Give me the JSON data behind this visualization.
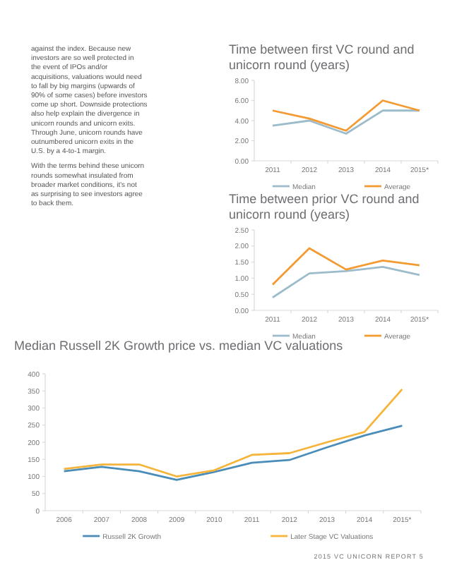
{
  "chart_data": [
    {
      "type": "other",
      "annotations": [
        "against the index. Because new investors are so well protected in the event of IPOs and/or acquisitions, valuations would need to fall by big margins (upwards of 90% of some cases) before investors come up short. Downside protections also help explain the divergence in unicorn rounds and unicorn exits. Through June, unicorn rounds have outnumbered unicorn exits in the U.S. by a 4-to-1 margin.",
        "With the terms behind these unicorn rounds somewhat insulated from broader market conditions, it's not as surprising to see investors agree to back them."
      ]
    },
    {
      "type": "line",
      "title": "Time between first VC round and unicorn round (years)",
      "categories": [
        "2011",
        "2012",
        "2013",
        "2014",
        "2015*"
      ],
      "series": [
        {
          "name": "Median",
          "color": "#9dbccb",
          "values": [
            3.5,
            4.0,
            2.7,
            5.0,
            5.0
          ]
        },
        {
          "name": "Average",
          "color": "#f39a32",
          "values": [
            5.0,
            4.2,
            3.0,
            6.0,
            5.0
          ]
        }
      ],
      "ylim": [
        0,
        8
      ],
      "yticks": [
        {
          "value": 0,
          "label": "0.00"
        },
        {
          "value": 2,
          "label": "2.00"
        },
        {
          "value": 4,
          "label": "4.00"
        },
        {
          "value": 6,
          "label": "6.00"
        },
        {
          "value": 8,
          "label": "8.00"
        }
      ],
      "grid": false,
      "legend": "bottom",
      "marker": "none"
    },
    {
      "type": "line",
      "title": "Time between prior VC round and unicorn round (years)",
      "categories": [
        "2011",
        "2012",
        "2013",
        "2014",
        "2015*"
      ],
      "series": [
        {
          "name": "Median",
          "color": "#9dbccb",
          "values": [
            0.4,
            1.15,
            1.22,
            1.35,
            1.1
          ]
        },
        {
          "name": "Average",
          "color": "#f39a32",
          "values": [
            0.8,
            1.93,
            1.27,
            1.55,
            1.4
          ]
        }
      ],
      "ylim": [
        0,
        2.5
      ],
      "yticks": [
        {
          "value": 0,
          "label": "0.00"
        },
        {
          "value": 0.5,
          "label": "0.50"
        },
        {
          "value": 1,
          "label": "1.00"
        },
        {
          "value": 1.5,
          "label": "1.50"
        },
        {
          "value": 2,
          "label": "2.00"
        },
        {
          "value": 2.5,
          "label": "2.50"
        }
      ],
      "grid": false,
      "legend": "bottom",
      "marker": "none"
    },
    {
      "type": "line",
      "title": "Median Russell 2K Growth price vs. median VC valuations",
      "categories": [
        "2006",
        "2007",
        "2008",
        "2009",
        "2010",
        "2011",
        "2012",
        "2013",
        "2014",
        "2015*"
      ],
      "series": [
        {
          "name": "Russell 2K Growth",
          "color": "#4a8db8",
          "values": [
            115,
            128,
            115,
            90,
            113,
            140,
            148,
            185,
            220,
            248
          ]
        },
        {
          "name": "Later Stage VC Valuations",
          "color": "#f5b43a",
          "values": [
            122,
            135,
            135,
            100,
            118,
            163,
            168,
            200,
            230,
            355
          ]
        }
      ],
      "ylim": [
        0,
        400
      ],
      "yticks": [
        0,
        50,
        100,
        150,
        200,
        250,
        300,
        350,
        400
      ],
      "grid": false,
      "legend": "bottom",
      "marker": "none",
      "annotations": [
        "2015 VC UNICORN REPORT 5"
      ]
    }
  ]
}
